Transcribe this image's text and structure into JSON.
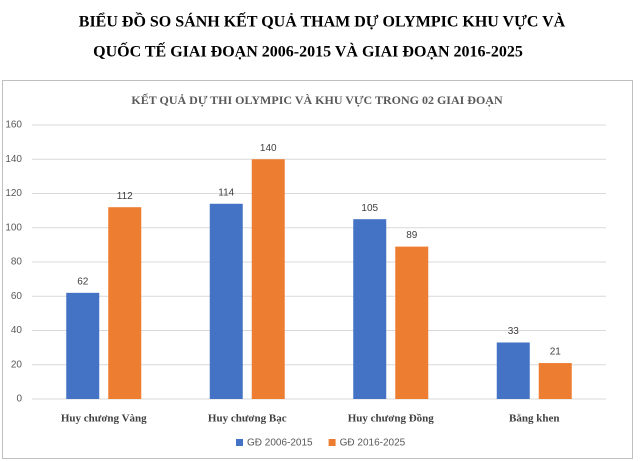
{
  "chart_data": {
    "type": "bar",
    "title": [
      "BIỂU ĐỒ SO SÁNH KẾT QUẢ THAM DỰ OLYMPIC KHU VỰC VÀ",
      "QUỐC TẾ GIAI ĐOẠN 2006-2015 VÀ GIAI ĐOẠN 2016-2025"
    ],
    "chart_title": "KẾT QUẢ DỰ THI OLYMPIC VÀ KHU VỰC TRONG 02 GIAI ĐOẠN",
    "categories": [
      "Huy chương Vàng",
      "Huy chương Bạc",
      "Huy chương Đồng",
      "Bằng khen"
    ],
    "series": [
      {
        "name": "GĐ 2006-2015",
        "color": "#4472c4",
        "values": [
          62,
          114,
          105,
          33
        ]
      },
      {
        "name": "GĐ 2016-2025",
        "color": "#ed7d31",
        "values": [
          112,
          140,
          89,
          21
        ]
      }
    ],
    "ylim": [
      0,
      160
    ],
    "yticks": [
      0,
      20,
      40,
      60,
      80,
      100,
      120,
      140,
      160
    ],
    "grid": true,
    "legend": "bottom"
  }
}
